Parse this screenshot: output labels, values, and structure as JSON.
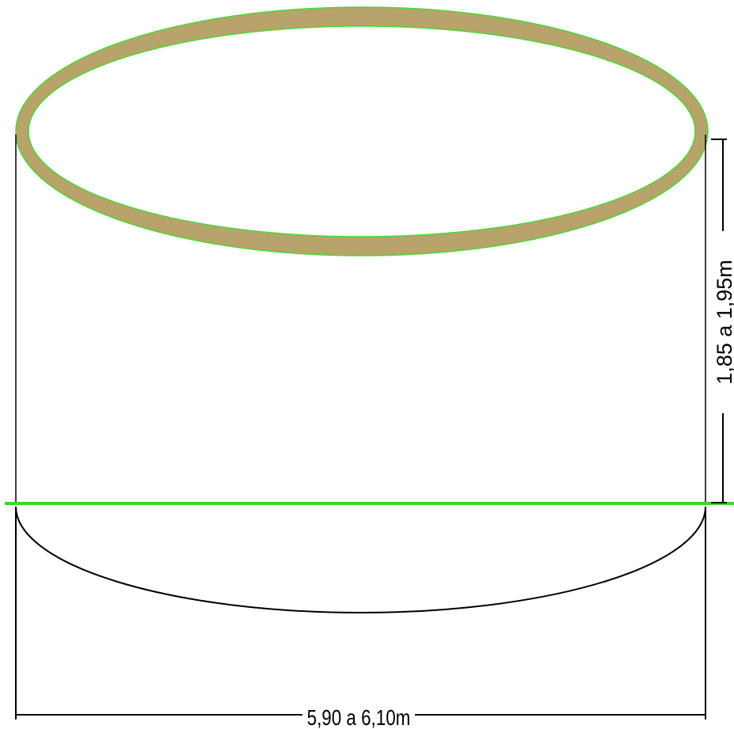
{
  "diagram": {
    "height_dimension_label": "1,85 a 1,95m",
    "width_dimension_label": "5,90 a 6,10m",
    "colors": {
      "rim_fill": "#b8a36a",
      "rim_outline": "#4ad83a",
      "ground_line": "#33dd22",
      "lines": "#000000",
      "background": "#ffffff"
    }
  }
}
